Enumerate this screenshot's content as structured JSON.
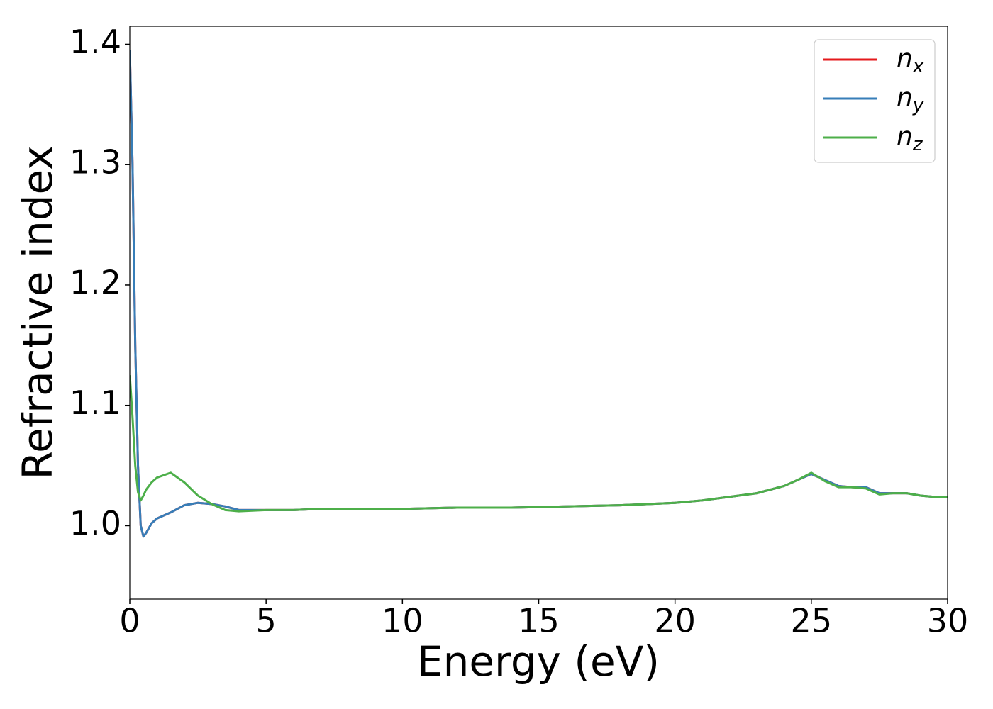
{
  "chart_data": {
    "type": "line",
    "xlabel": "Energy (eV)",
    "ylabel": "Refractive index",
    "x": [
      0,
      0.1,
      0.2,
      0.3,
      0.4,
      0.5,
      0.6,
      0.8,
      1.0,
      1.5,
      2.0,
      2.5,
      3.0,
      3.5,
      4.0,
      5,
      6,
      7,
      8,
      10,
      12,
      14,
      16,
      18,
      20,
      21,
      22,
      23,
      24,
      24.5,
      25,
      25.5,
      26,
      26.5,
      27,
      27.5,
      28,
      28.5,
      29,
      29.5,
      30
    ],
    "series": [
      {
        "name": "n_x",
        "color": "#e41a1c",
        "values": [
          1.395,
          1.3,
          1.15,
          1.05,
          1.0,
          0.991,
          0.994,
          1.002,
          1.006,
          1.011,
          1.017,
          1.019,
          1.018,
          1.016,
          1.013,
          1.013,
          1.013,
          1.014,
          1.014,
          1.014,
          1.015,
          1.015,
          1.016,
          1.017,
          1.019,
          1.021,
          1.024,
          1.027,
          1.033,
          1.038,
          1.043,
          1.038,
          1.033,
          1.032,
          1.032,
          1.027,
          1.027,
          1.027,
          1.025,
          1.024,
          1.024
        ]
      },
      {
        "name": "n_y",
        "color": "#377eb8",
        "values": [
          1.395,
          1.3,
          1.15,
          1.05,
          1.0,
          0.991,
          0.994,
          1.002,
          1.006,
          1.011,
          1.017,
          1.019,
          1.018,
          1.016,
          1.013,
          1.013,
          1.013,
          1.014,
          1.014,
          1.014,
          1.015,
          1.015,
          1.016,
          1.017,
          1.019,
          1.021,
          1.024,
          1.027,
          1.033,
          1.038,
          1.043,
          1.038,
          1.033,
          1.032,
          1.032,
          1.027,
          1.027,
          1.027,
          1.025,
          1.024,
          1.024
        ]
      },
      {
        "name": "n_z",
        "color": "#4daf4a",
        "values": [
          1.125,
          1.09,
          1.05,
          1.028,
          1.021,
          1.025,
          1.03,
          1.036,
          1.04,
          1.044,
          1.036,
          1.025,
          1.018,
          1.013,
          1.012,
          1.013,
          1.013,
          1.014,
          1.014,
          1.014,
          1.015,
          1.015,
          1.016,
          1.017,
          1.019,
          1.021,
          1.024,
          1.027,
          1.033,
          1.038,
          1.044,
          1.037,
          1.032,
          1.032,
          1.031,
          1.026,
          1.027,
          1.027,
          1.025,
          1.024,
          1.024
        ]
      }
    ],
    "xlim": [
      0,
      30
    ],
    "xticks": [
      0,
      5,
      10,
      15,
      20,
      25,
      30
    ],
    "ylim": [
      0.939,
      1.415
    ],
    "yticks": [
      {
        "value": 1.0,
        "label": "1.0"
      },
      1.1,
      1.2,
      1.3,
      1.4
    ],
    "grid": false,
    "legend": "upper right"
  }
}
